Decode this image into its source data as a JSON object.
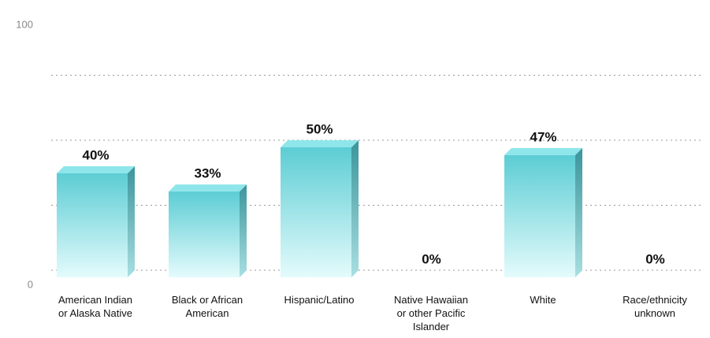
{
  "chart_data": {
    "type": "bar3d",
    "categories": [
      "American Indian\nor Alaska Native",
      "Black or African\nAmerican",
      "Hispanic/Latino",
      "Native Hawaiian\nor other Pacific\nIslander",
      "White",
      "Race/ethnicity\nunknown"
    ],
    "values": [
      40,
      33,
      50,
      0,
      47,
      0
    ],
    "value_labels": [
      "40%",
      "33%",
      "50%",
      "0%",
      "47%",
      "0%"
    ],
    "color": "#5ccdd4",
    "ylim": [
      0,
      100
    ],
    "yticks": [
      0,
      100
    ],
    "gridlines": [
      0,
      25,
      50,
      75
    ],
    "grid": true
  }
}
